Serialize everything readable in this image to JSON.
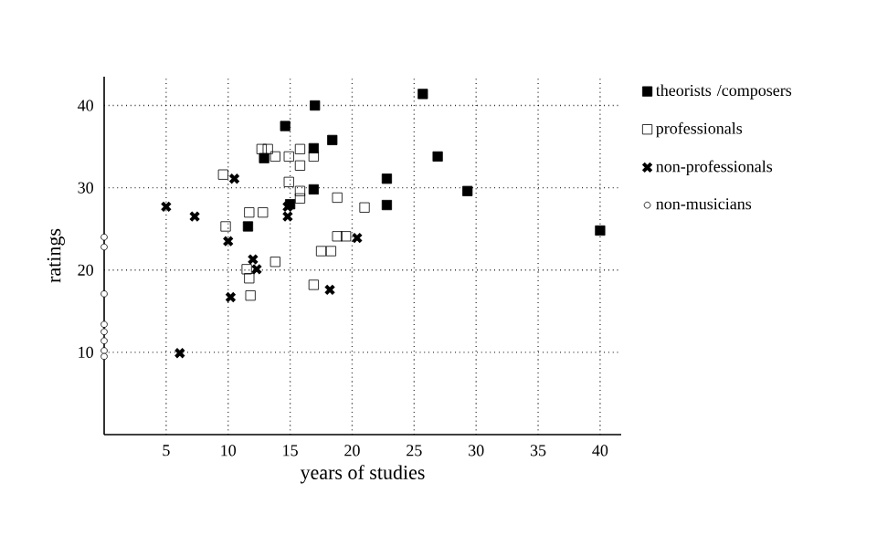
{
  "chart_data": {
    "type": "scatter",
    "xlabel": "years of studies",
    "ylabel": "ratings",
    "xlim": [
      0,
      41.7
    ],
    "ylim": [
      0,
      43.5
    ],
    "xticks": [
      5,
      10,
      15,
      20,
      25,
      30,
      35,
      40
    ],
    "yticks": [
      10,
      20,
      30,
      40
    ],
    "grid": true,
    "legend": "right",
    "series": [
      {
        "name": "theorists /composers",
        "color": "#000000",
        "marker": "square_filled",
        "x": [
          17.0,
          14.6,
          18.4,
          16.9,
          12.9,
          16.9,
          11.6,
          15.0,
          25.7,
          26.9,
          22.8,
          22.8,
          29.3,
          40.0
        ],
        "values": [
          40.0,
          37.5,
          35.8,
          34.8,
          33.6,
          29.8,
          25.3,
          28.0,
          41.4,
          33.8,
          31.1,
          27.9,
          29.6,
          24.8
        ]
      },
      {
        "name": "professionals",
        "color": "#000000",
        "marker": "square",
        "x": [
          9.6,
          12.7,
          13.2,
          13.8,
          14.9,
          15.8,
          15.8,
          16.9,
          14.9,
          15.8,
          15.8,
          18.8,
          11.7,
          12.8,
          9.8,
          21.0,
          18.8,
          19.5,
          17.5,
          18.3,
          13.8,
          11.5,
          11.7,
          16.9,
          11.8
        ],
        "values": [
          31.6,
          34.7,
          34.7,
          33.8,
          33.8,
          34.7,
          32.7,
          33.8,
          30.7,
          29.6,
          28.7,
          28.8,
          27.0,
          27.0,
          25.3,
          27.6,
          24.1,
          24.1,
          22.3,
          22.3,
          21.0,
          20.1,
          19.0,
          18.2,
          16.9
        ]
      },
      {
        "name": "non-professionals",
        "color": "#000000",
        "marker": "cross",
        "x": [
          5.0,
          7.3,
          10.5,
          10.0,
          14.8,
          14.8,
          20.4,
          12.0,
          12.3,
          10.2,
          6.1,
          18.2
        ],
        "values": [
          27.7,
          26.5,
          31.1,
          23.5,
          27.7,
          26.5,
          23.9,
          21.3,
          20.1,
          16.7,
          9.9,
          17.6
        ]
      },
      {
        "name": "non-musicians",
        "color": "#000000",
        "marker": "circle",
        "x": [
          0,
          0,
          0,
          0,
          0,
          0,
          0,
          0
        ],
        "values": [
          24.0,
          22.8,
          17.1,
          13.4,
          12.5,
          11.4,
          10.2,
          9.5
        ]
      }
    ]
  }
}
